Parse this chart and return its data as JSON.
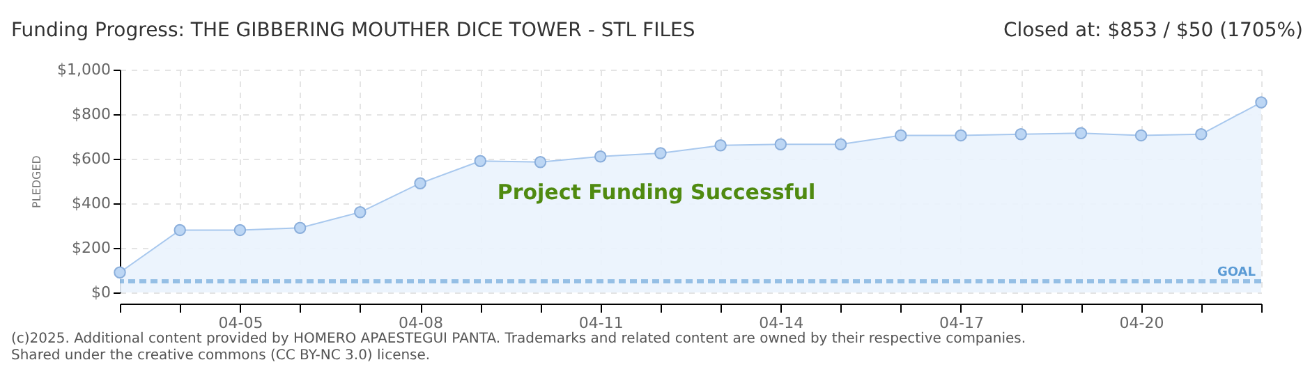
{
  "chart_data": {
    "type": "area",
    "title": "Funding Progress: THE GIBBERING MOUTHER DICE TOWER - STL FILES",
    "subtitle": "Closed at:  $853 /  $50 (1705%)",
    "ylabel": "PLEDGED",
    "categories": [
      null,
      null,
      "04-05",
      null,
      null,
      "04-08",
      null,
      null,
      "04-11",
      null,
      null,
      "04-14",
      null,
      null,
      "04-17",
      null,
      null,
      "04-20",
      null,
      null
    ],
    "series": [
      {
        "color": "#a8c8ee",
        "values": [
          90,
          280,
          280,
          290,
          360,
          490,
          590,
          585,
          610,
          625,
          660,
          665,
          665,
          705,
          705,
          710,
          715,
          705,
          710,
          853
        ]
      }
    ],
    "ylim": [
      0,
      1000
    ],
    "yticks": [
      {
        "value": 0,
        "label": "$0"
      },
      {
        "value": 200,
        "label": "$200"
      },
      {
        "value": 400,
        "label": "$400"
      },
      {
        "value": 600,
        "label": "$600"
      },
      {
        "value": 800,
        "label": "$800"
      },
      {
        "value": 1000,
        "label": "$1,000"
      }
    ],
    "grid": true,
    "marker": "circle",
    "ref_lines": [
      {
        "axis": "y",
        "value": 50,
        "label": "GOAL",
        "color": "#5b9bd5",
        "line_style": "dashed"
      }
    ],
    "annotations": [
      "Project Funding Successful",
      "(c)2025. Additional content provided by HOMERO APAESTEGUI PANTA. Trademarks and related content are owned by their respective companies.",
      "Shared under the creative commons (CC BY-NC 3.0) license."
    ]
  }
}
